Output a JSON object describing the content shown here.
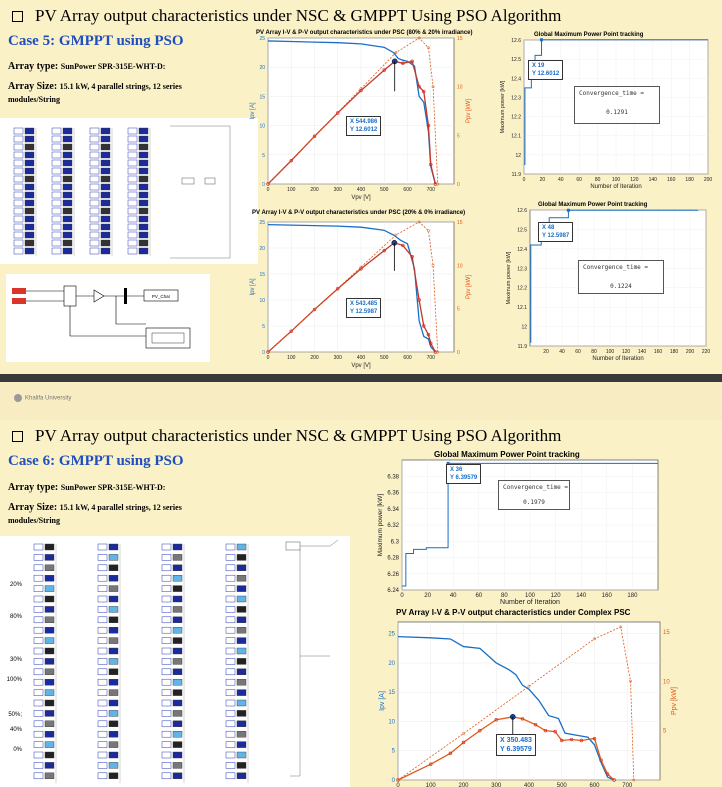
{
  "slide1": {
    "title": "PV Array output characteristics under NSC & GMPPT Using PSO Algorithm",
    "case_title": "Case 5: GMPPT using PSO",
    "array_type_label": "Array type:",
    "array_type_value": "SunPower SPR-315E-WHT-D:",
    "array_size_label": "Array Size:",
    "array_size_value": "15.1 kW, 4 parallel strings, 12 series modules/String",
    "control_block_label": "PV_Char",
    "chart_top": {
      "title": "PV Array I-V & P-V output characteristics under PSC (80% & 20% irradiance)",
      "xlabel": "Vpv [V]",
      "ylabel_left": "Ipv [A]",
      "ylabel_right": "Ppv [kW]",
      "tooltip_x": "X 544.986",
      "tooltip_y": "Y 12.6012"
    },
    "chart_bottom": {
      "title": "PV Array I-V & P-V output characteristics under PSC (20% & 0% irradiance)",
      "xlabel": "Vpv [V]",
      "ylabel_left": "Ipv [A]",
      "ylabel_right": "Ppv [kW]",
      "tooltip_x": "X 543.485",
      "tooltip_y": "Y 12.5987"
    },
    "gmppt_top": {
      "title": "Global Maximum Power Point tracking",
      "xlabel": "Number of Iteration",
      "ylabel": "Maximum power [kW]",
      "tooltip_x": "X 19",
      "tooltip_y": "Y 12.6012",
      "conv_label": "Convergence_time =",
      "conv_value": "0.1291"
    },
    "gmppt_bottom": {
      "title": "Global Maximum Power Point tracking",
      "xlabel": "Number of Iteration",
      "ylabel": "Maximum power [kW]",
      "tooltip_x": "X 48",
      "tooltip_y": "Y 12.5987",
      "conv_label": "Convergence_time =",
      "conv_value": "0.1224"
    }
  },
  "footer": {
    "logo_text": "Khalifa University"
  },
  "slide2": {
    "title": "PV Array output characteristics under NSC & GMPPT Using PSO Algorithm",
    "case_title": "Case 6: GMPPT using PSO",
    "array_type_label": "Array type:",
    "array_type_value": "SunPower SPR-315E-WHT-D:",
    "array_size_label": "Array Size:",
    "array_size_value": "15.1 kW, 4 parallel strings, 12 series modules/String",
    "irradiance_labels": [
      "20%",
      "80%",
      "30%",
      "100%",
      "50%;",
      "40%",
      "0%"
    ],
    "gmppt": {
      "title": "Global Maximum Power Point tracking",
      "xlabel": "Number of Iteration",
      "ylabel": "Maximum power [kW]",
      "tooltip_x": "X 36",
      "tooltip_y": "Y 6.39579",
      "conv_label": "Convergence_time =",
      "conv_value": "0.1979"
    },
    "chart": {
      "title": "PV Array I-V & P-V output characteristics under Complex PSC",
      "ylabel_left": "Ipv [A]",
      "ylabel_right": "Ppv [kW]",
      "tooltip_x": "X 350.483",
      "tooltip_y": "Y 6.39579"
    }
  },
  "chart_data": [
    {
      "type": "line",
      "title": "PV Array I-V & P-V output characteristics under PSC (80% & 20% irradiance)",
      "xlabel": "Vpv [V]",
      "ylabel": "Ipv [A]",
      "y2label": "Ppv [kW]",
      "xlim": [
        0,
        800
      ],
      "ylim": [
        0,
        25
      ],
      "y2lim": [
        0,
        15
      ],
      "xticks": [
        0,
        100,
        200,
        300,
        400,
        500,
        600,
        700
      ],
      "yticks": [
        0,
        5,
        10,
        15,
        20,
        25
      ],
      "y2ticks": [
        0,
        5,
        10,
        15
      ],
      "series": [
        {
          "name": "I-V",
          "color": "#1a6fc4",
          "x": [
            0,
            100,
            200,
            300,
            400,
            500,
            540,
            560,
            580,
            600,
            630,
            650,
            670,
            690,
            700,
            720
          ],
          "y": [
            24.5,
            24.4,
            24.3,
            24.2,
            24.0,
            23.4,
            22.5,
            21.5,
            21.2,
            21.0,
            20.2,
            15.0,
            14.0,
            9.0,
            3.0,
            0
          ]
        },
        {
          "name": "P-V",
          "color": "#c0392b",
          "x": [
            0,
            100,
            200,
            300,
            400,
            500,
            545,
            580,
            620,
            650,
            670,
            690,
            700,
            720
          ],
          "y": [
            0,
            2.4,
            4.9,
            7.3,
            9.6,
            11.7,
            12.6,
            12.4,
            12.6,
            10.0,
            9.5,
            6.0,
            2.0,
            0
          ]
        },
        {
          "name": "P-V (uniform)",
          "color": "#e05a1a",
          "x": [
            0,
            200,
            400,
            550,
            650,
            690,
            710,
            730
          ],
          "y": [
            0,
            4.9,
            9.8,
            13.5,
            15.0,
            14.0,
            10.0,
            0
          ]
        }
      ],
      "marker": {
        "x": 544.986,
        "y": 12.6012
      }
    },
    {
      "type": "line",
      "title": "PV Array I-V & P-V output characteristics under PSC (20% & 0% irradiance)",
      "xlabel": "Vpv [V]",
      "ylabel": "Ipv [A]",
      "y2label": "Ppv [kW]",
      "xlim": [
        0,
        800
      ],
      "ylim": [
        0,
        25
      ],
      "y2lim": [
        0,
        15
      ],
      "xticks": [
        0,
        100,
        200,
        300,
        400,
        500,
        600,
        700
      ],
      "yticks": [
        0,
        5,
        10,
        15,
        20,
        25
      ],
      "y2ticks": [
        0,
        5,
        10,
        15
      ],
      "series": [
        {
          "name": "I-V",
          "color": "#1a6fc4",
          "x": [
            0,
            100,
            200,
            300,
            400,
            500,
            540,
            570,
            600,
            630,
            650,
            670,
            690,
            700,
            720
          ],
          "y": [
            24.5,
            24.4,
            24.3,
            24.2,
            24.0,
            23.4,
            22.5,
            21.5,
            20.8,
            16.0,
            6.0,
            3.0,
            2.5,
            1.0,
            0
          ]
        },
        {
          "name": "P-V",
          "color": "#c0392b",
          "x": [
            0,
            100,
            200,
            300,
            400,
            500,
            543,
            580,
            620,
            650,
            670,
            690,
            700,
            720
          ],
          "y": [
            0,
            2.4,
            4.9,
            7.3,
            9.6,
            11.7,
            12.6,
            12.3,
            11.0,
            6.0,
            3.0,
            2.0,
            1.0,
            0
          ]
        },
        {
          "name": "P-V (uniform)",
          "color": "#e05a1a",
          "x": [
            0,
            200,
            400,
            550,
            650,
            690,
            710,
            730
          ],
          "y": [
            0,
            4.9,
            9.8,
            13.5,
            15.0,
            14.0,
            10.0,
            0
          ]
        }
      ],
      "marker": {
        "x": 543.485,
        "y": 12.5987
      }
    },
    {
      "type": "line",
      "title": "Global Maximum Power Point tracking",
      "xlabel": "Number of Iteration",
      "ylabel": "Maximum power [kW]",
      "xlim": [
        0,
        200
      ],
      "ylim": [
        11.9,
        12.6
      ],
      "xticks": [
        0,
        20,
        40,
        60,
        80,
        100,
        120,
        140,
        160,
        180,
        200
      ],
      "yticks": [
        11.9,
        12,
        12.1,
        12.2,
        12.3,
        12.4,
        12.5,
        12.6
      ],
      "series": [
        {
          "name": "GMPP",
          "x": [
            0,
            1,
            1,
            8,
            8,
            12,
            12,
            19,
            19,
            200
          ],
          "y": [
            11.95,
            11.95,
            12.35,
            12.35,
            12.48,
            12.48,
            12.52,
            12.52,
            12.6012,
            12.6012
          ]
        }
      ],
      "marker": {
        "x": 19,
        "y": 12.6012
      }
    },
    {
      "type": "line",
      "title": "Global Maximum Power Point tracking",
      "xlabel": "Number of Iteration",
      "ylabel": "Maximum power [kW]",
      "xlim": [
        0,
        220
      ],
      "ylim": [
        11.9,
        12.6
      ],
      "xticks": [
        20,
        40,
        60,
        80,
        100,
        120,
        140,
        160,
        180,
        200,
        220
      ],
      "yticks": [
        11.9,
        12,
        12.1,
        12.2,
        12.3,
        12.4,
        12.5,
        12.6
      ],
      "series": [
        {
          "name": "GMPP",
          "x": [
            0,
            1,
            1,
            14,
            14,
            24,
            24,
            48,
            48,
            210
          ],
          "y": [
            11.92,
            11.92,
            12.42,
            12.42,
            12.52,
            12.52,
            12.56,
            12.56,
            12.5987,
            12.5987
          ]
        }
      ],
      "marker": {
        "x": 48,
        "y": 12.5987
      }
    },
    {
      "type": "line",
      "title": "Global Maximum Power Point tracking",
      "xlabel": "Number of Iteration",
      "ylabel": "Maximum power [kW]",
      "xlim": [
        0,
        200
      ],
      "ylim": [
        6.24,
        6.4
      ],
      "xticks": [
        0,
        20,
        40,
        60,
        80,
        100,
        120,
        140,
        160,
        180
      ],
      "yticks": [
        6.24,
        6.26,
        6.28,
        6.3,
        6.32,
        6.34,
        6.36,
        6.38
      ],
      "series": [
        {
          "name": "GMPP",
          "x": [
            0,
            3,
            3,
            9,
            9,
            19,
            19,
            36,
            36,
            200
          ],
          "y": [
            6.245,
            6.245,
            6.285,
            6.285,
            6.29,
            6.29,
            6.292,
            6.292,
            6.39579,
            6.39579
          ]
        }
      ],
      "marker": {
        "x": 36,
        "y": 6.39579
      }
    },
    {
      "type": "line",
      "title": "PV Array I-V & P-V output characteristics under Complex PSC",
      "ylabel": "Ipv [A]",
      "y2label": "Ppv [kW]",
      "xlim": [
        0,
        800
      ],
      "ylim": [
        0,
        27
      ],
      "y2lim": [
        0,
        16
      ],
      "xticks": [
        0,
        100,
        200,
        300,
        400,
        500,
        600,
        700
      ],
      "yticks": [
        0,
        5,
        10,
        15,
        20,
        25
      ],
      "y2ticks": [
        5,
        10,
        15
      ],
      "series": [
        {
          "name": "I-V",
          "color": "#1a6fc4",
          "x": [
            0,
            100,
            160,
            200,
            250,
            280,
            300,
            340,
            360,
            380,
            400,
            430,
            460,
            490,
            510,
            550,
            580,
            600,
            620,
            640,
            660
          ],
          "y": [
            24.5,
            24.3,
            24.1,
            22.8,
            22.5,
            21.0,
            20.0,
            18.8,
            18.0,
            16.2,
            15.5,
            13.6,
            11.0,
            10.5,
            8.0,
            7.6,
            7.3,
            6.0,
            3.0,
            0.5,
            0
          ]
        },
        {
          "name": "P-V",
          "color": "#e05a1a",
          "x": [
            0,
            100,
            160,
            200,
            250,
            300,
            350,
            380,
            420,
            450,
            480,
            500,
            530,
            560,
            600,
            620,
            640,
            660
          ],
          "y": [
            0,
            1.6,
            2.7,
            3.8,
            5.0,
            6.1,
            6.39,
            6.2,
            5.6,
            5.0,
            4.9,
            4.0,
            4.1,
            4.0,
            4.2,
            2.0,
            0.6,
            0
          ]
        },
        {
          "name": "P-V (uniform)",
          "color": "#e05a1a",
          "x": [
            0,
            200,
            400,
            600,
            680,
            710,
            720
          ],
          "y": [
            0,
            4.7,
            9.5,
            14.3,
            15.5,
            10.0,
            0
          ]
        }
      ],
      "marker": {
        "x": 350.483,
        "y": 6.39579
      }
    }
  ]
}
